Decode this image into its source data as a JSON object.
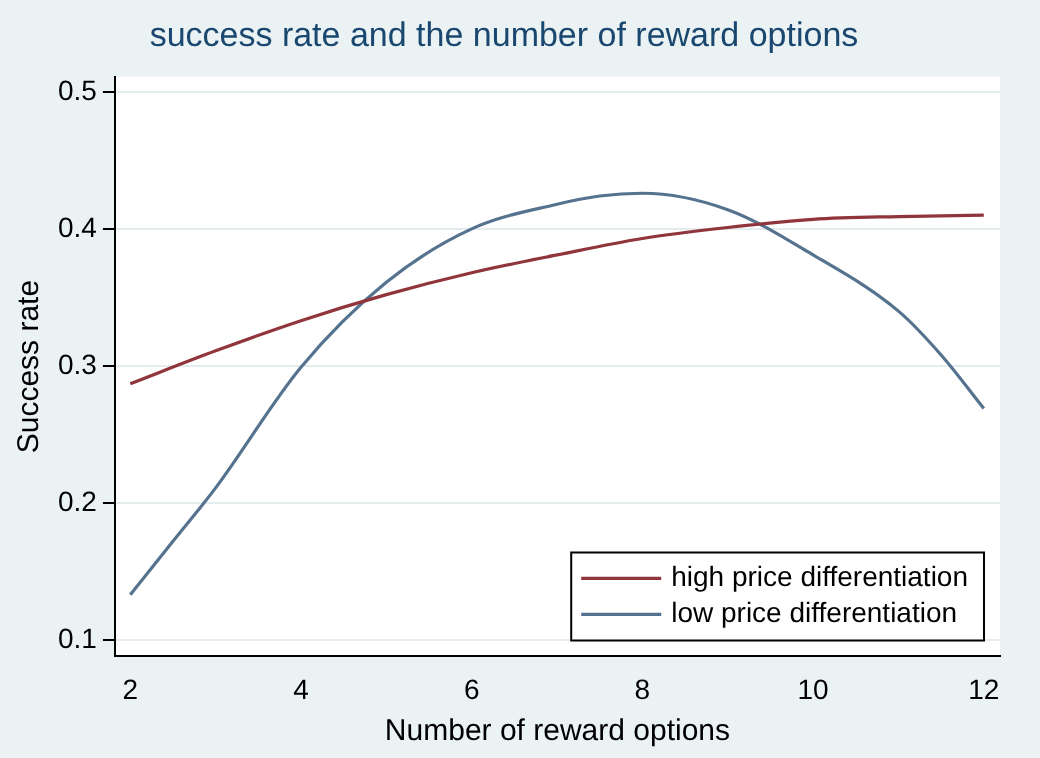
{
  "chart_data": {
    "type": "line",
    "title": "success rate and the number of reward options",
    "xlabel": "Number of reward options",
    "ylabel": "Success rate",
    "xlim": [
      1.82,
      12.19
    ],
    "xticks": [
      2,
      4,
      6,
      8,
      10,
      12
    ],
    "ylim": [
      0.088,
      0.511
    ],
    "yticks": [
      0.1,
      0.2,
      0.3,
      0.4,
      0.5
    ],
    "grid": "y",
    "legend": "bottom right",
    "marker": "none",
    "line_style": "solid",
    "series": [
      {
        "name": "high price differentiation",
        "color": "#90353b",
        "x": [
          2,
          3,
          4,
          5,
          6,
          7,
          8,
          9,
          10,
          11,
          12
        ],
        "values": [
          0.287,
          0.311,
          0.333,
          0.352,
          0.368,
          0.381,
          0.393,
          0.401,
          0.407,
          0.409,
          0.41
        ]
      },
      {
        "name": "low price differentiation",
        "color": "#55738f",
        "x": [
          2,
          2.5,
          3,
          4,
          5,
          6,
          7,
          7.5,
          8,
          9,
          10,
          11,
          11.5,
          12
        ],
        "values": [
          0.133,
          0.172,
          0.211,
          0.299,
          0.361,
          0.4,
          0.418,
          0.424,
          0.426,
          0.414,
          0.381,
          0.34,
          0.308,
          0.269
        ]
      }
    ]
  }
}
